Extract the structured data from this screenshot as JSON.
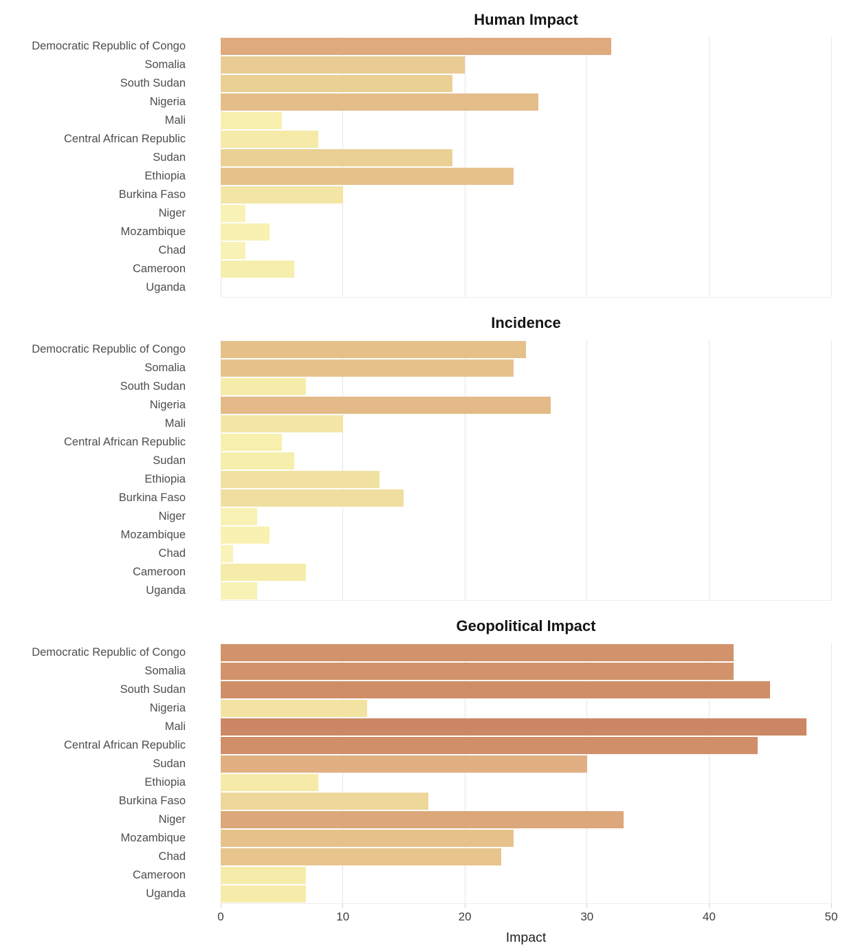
{
  "axis": {
    "xlabel": "Impact",
    "min": 0,
    "max": 50,
    "ticks": [
      0,
      10,
      20,
      30,
      40,
      50
    ],
    "gridline_color": "#e6e6e6",
    "tick_color": "#cfcfcf"
  },
  "style": {
    "color_scale_anchors": [
      [
        0,
        "#faf4bd"
      ],
      [
        5,
        "#f7f0ae"
      ],
      [
        10,
        "#f3e6a4"
      ],
      [
        15,
        "#f0de9e"
      ],
      [
        20,
        "#e9cc93"
      ],
      [
        25,
        "#e5c089"
      ],
      [
        30,
        "#e0b083"
      ],
      [
        35,
        "#daa176"
      ],
      [
        42,
        "#d2936c"
      ],
      [
        48,
        "#cc8864"
      ]
    ]
  },
  "chart_data": [
    {
      "type": "bar",
      "orientation": "horizontal",
      "title": "Human Impact",
      "xlabel": "Impact",
      "xlim": [
        0,
        50
      ],
      "grid": true,
      "categories": [
        "Democratic Republic of Congo",
        "Somalia",
        "South Sudan",
        "Nigeria",
        "Mali",
        "Central African Republic",
        "Sudan",
        "Ethiopia",
        "Burkina Faso",
        "Niger",
        "Mozambique",
        "Chad",
        "Cameroon",
        "Uganda"
      ],
      "values": [
        32,
        20,
        19,
        26,
        5,
        8,
        19,
        24,
        10,
        2,
        4,
        2,
        6,
        0
      ]
    },
    {
      "type": "bar",
      "orientation": "horizontal",
      "title": "Incidence",
      "xlabel": "Impact",
      "xlim": [
        0,
        50
      ],
      "grid": true,
      "categories": [
        "Democratic Republic of Congo",
        "Somalia",
        "South Sudan",
        "Nigeria",
        "Mali",
        "Central African Republic",
        "Sudan",
        "Ethiopia",
        "Burkina Faso",
        "Niger",
        "Mozambique",
        "Chad",
        "Cameroon",
        "Uganda"
      ],
      "values": [
        25,
        24,
        7,
        27,
        10,
        5,
        6,
        13,
        15,
        3,
        4,
        1,
        7,
        3
      ]
    },
    {
      "type": "bar",
      "orientation": "horizontal",
      "title": "Geopolitical Impact",
      "xlabel": "Impact",
      "xlim": [
        0,
        50
      ],
      "grid": true,
      "categories": [
        "Democratic Republic of Congo",
        "Somalia",
        "South Sudan",
        "Nigeria",
        "Mali",
        "Central African Republic",
        "Sudan",
        "Ethiopia",
        "Burkina Faso",
        "Niger",
        "Mozambique",
        "Chad",
        "Cameroon",
        "Uganda"
      ],
      "values": [
        42,
        42,
        45,
        12,
        48,
        44,
        30,
        8,
        17,
        33,
        24,
        23,
        7,
        7
      ]
    }
  ]
}
